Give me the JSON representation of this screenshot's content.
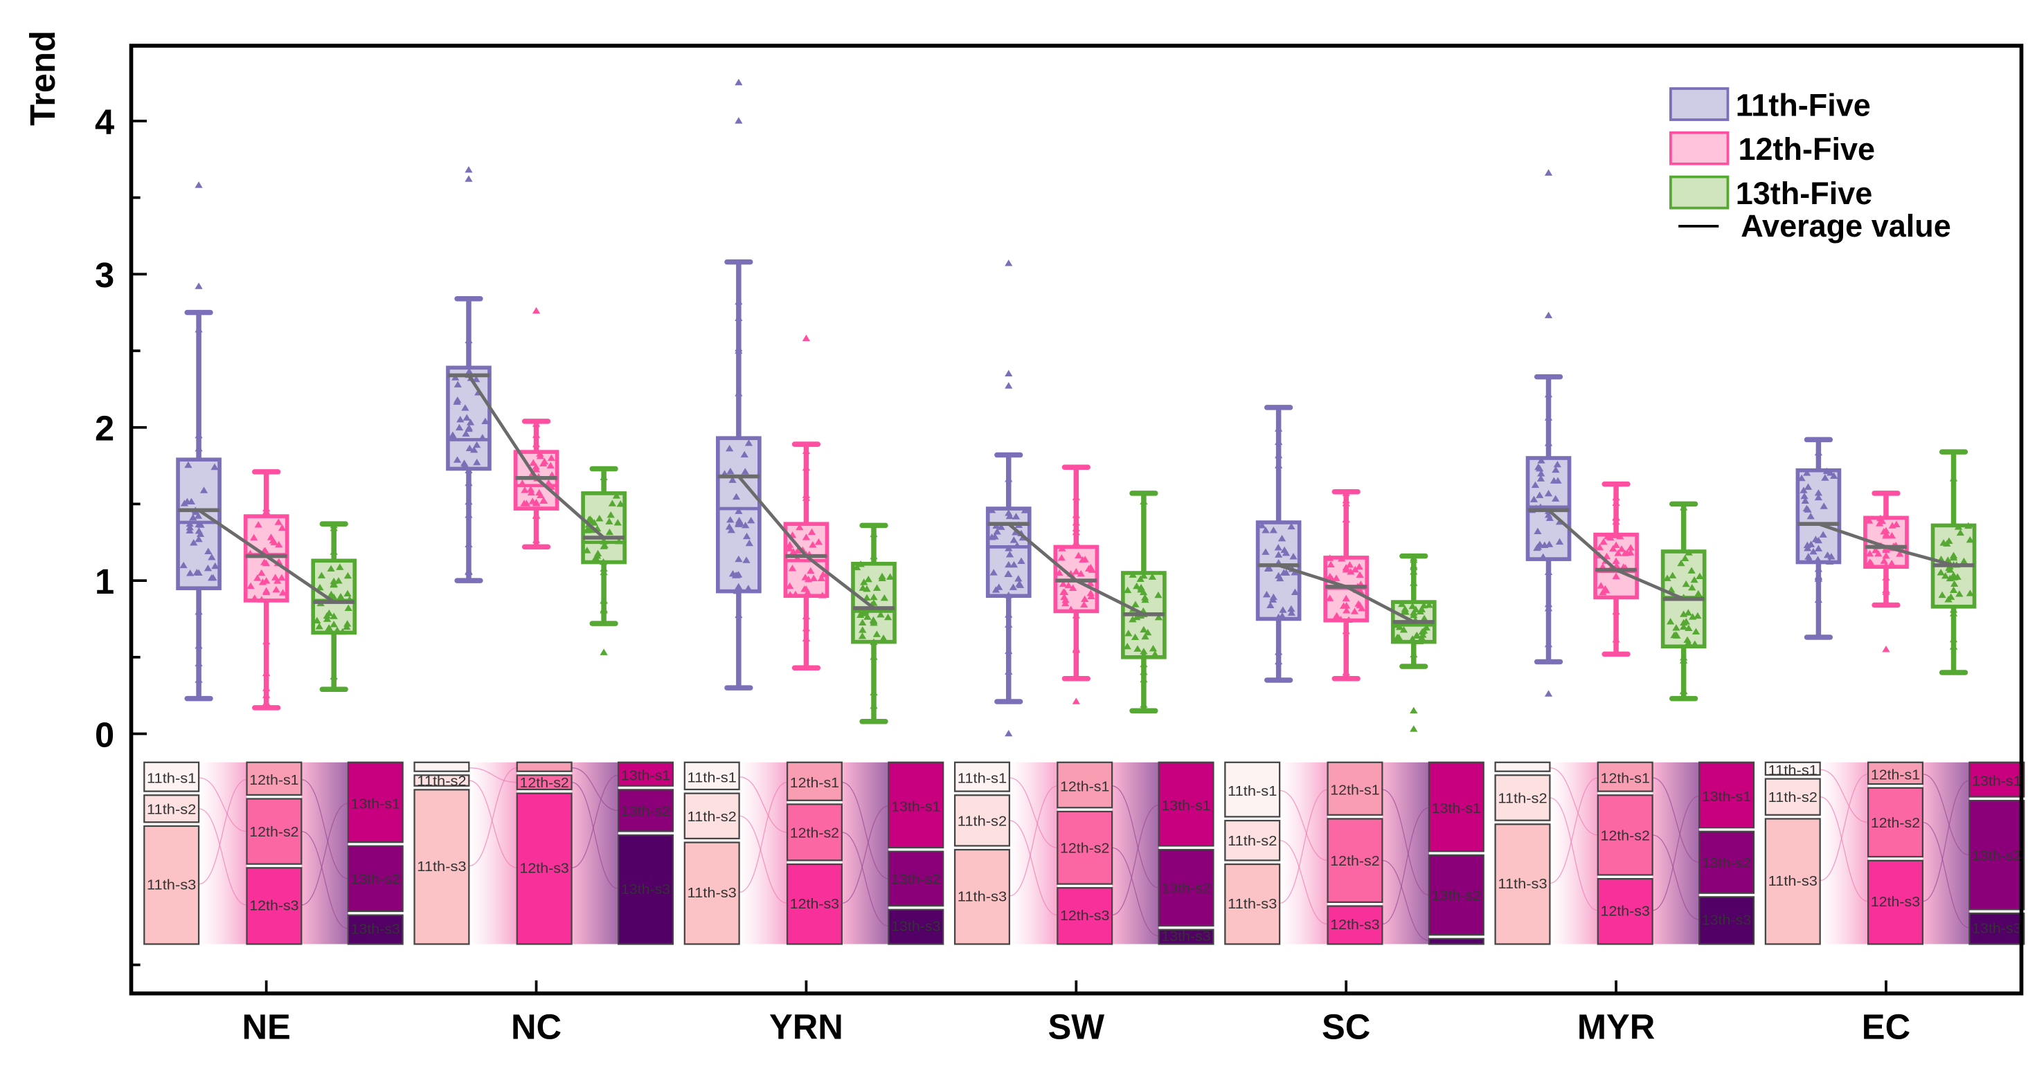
{
  "chart_data": {
    "type": "box",
    "ylabel": "Trend",
    "xlabel": "",
    "ylim": [
      -1.7,
      4.5
    ],
    "yticks": [
      "0",
      "1",
      "2",
      "3",
      "4"
    ],
    "categories": [
      "NE",
      "NC",
      "YRN",
      "SW",
      "SC",
      "MYR",
      "EC"
    ],
    "legend": {
      "placement": "top-right",
      "entries": [
        "11th-Five",
        "12th-Five",
        "13th-Five"
      ],
      "line_entry": "Average value"
    },
    "colors": {
      "11th-Five": {
        "stroke": "#7b6fb8",
        "fill": "#cfcde6"
      },
      "12th-Five": {
        "stroke": "#ff4fa0",
        "fill": "#ffc4dc"
      },
      "13th-Five": {
        "stroke": "#55a832",
        "fill": "#d0e4bd"
      },
      "mean_line": "#6b6b6b"
    },
    "series": [
      {
        "name": "11th-Five",
        "boxes": [
          {
            "low": 0.23,
            "q1": 0.95,
            "median": 1.38,
            "q3": 1.79,
            "high": 2.75,
            "mean": 1.46,
            "outliers": [
              2.92,
              3.58
            ]
          },
          {
            "low": 1.0,
            "q1": 1.73,
            "median": 1.92,
            "q3": 2.39,
            "high": 2.84,
            "mean": 2.34,
            "outliers": [
              3.62,
              3.68
            ]
          },
          {
            "low": 0.3,
            "q1": 0.93,
            "median": 1.47,
            "q3": 1.93,
            "high": 3.08,
            "mean": 1.68,
            "outliers": [
              4.0,
              4.25
            ]
          },
          {
            "low": 0.21,
            "q1": 0.9,
            "median": 1.22,
            "q3": 1.47,
            "high": 1.82,
            "mean": 1.37,
            "outliers": [
              2.27,
              2.35,
              3.07,
              0.0
            ]
          },
          {
            "low": 0.35,
            "q1": 0.75,
            "median": 1.1,
            "q3": 1.38,
            "high": 2.13,
            "mean": 1.1,
            "outliers": []
          },
          {
            "low": 0.47,
            "q1": 1.14,
            "median": 1.48,
            "q3": 1.8,
            "high": 2.33,
            "mean": 1.46,
            "outliers": [
              2.73,
              3.66,
              0.26
            ]
          },
          {
            "low": 0.63,
            "q1": 1.12,
            "median": 1.37,
            "q3": 1.72,
            "high": 1.92,
            "mean": 1.37,
            "outliers": []
          }
        ]
      },
      {
        "name": "12th-Five",
        "boxes": [
          {
            "low": 0.17,
            "q1": 0.87,
            "median": 1.17,
            "q3": 1.42,
            "high": 1.71,
            "mean": 1.16,
            "outliers": []
          },
          {
            "low": 1.22,
            "q1": 1.47,
            "median": 1.62,
            "q3": 1.84,
            "high": 2.04,
            "mean": 1.67,
            "outliers": [
              2.76
            ]
          },
          {
            "low": 0.43,
            "q1": 0.9,
            "median": 1.13,
            "q3": 1.37,
            "high": 1.89,
            "mean": 1.16,
            "outliers": [
              2.58
            ]
          },
          {
            "low": 0.36,
            "q1": 0.8,
            "median": 1.0,
            "q3": 1.22,
            "high": 1.74,
            "mean": 1.0,
            "outliers": [
              0.21
            ]
          },
          {
            "low": 0.36,
            "q1": 0.74,
            "median": 0.95,
            "q3": 1.15,
            "high": 1.58,
            "mean": 0.96,
            "outliers": []
          },
          {
            "low": 0.52,
            "q1": 0.89,
            "median": 1.06,
            "q3": 1.3,
            "high": 1.63,
            "mean": 1.07,
            "outliers": []
          },
          {
            "low": 0.84,
            "q1": 1.09,
            "median": 1.22,
            "q3": 1.41,
            "high": 1.57,
            "mean": 1.22,
            "outliers": [
              0.55
            ]
          }
        ]
      },
      {
        "name": "13th-Five",
        "boxes": [
          {
            "low": 0.29,
            "q1": 0.66,
            "median": 0.87,
            "q3": 1.13,
            "high": 1.37,
            "mean": 0.86,
            "outliers": []
          },
          {
            "low": 0.72,
            "q1": 1.12,
            "median": 1.25,
            "q3": 1.57,
            "high": 1.73,
            "mean": 1.28,
            "outliers": [
              0.53
            ]
          },
          {
            "low": 0.08,
            "q1": 0.6,
            "median": 0.8,
            "q3": 1.11,
            "high": 1.36,
            "mean": 0.82,
            "outliers": []
          },
          {
            "low": 0.15,
            "q1": 0.5,
            "median": 0.78,
            "q3": 1.05,
            "high": 1.57,
            "mean": 0.78,
            "outliers": []
          },
          {
            "low": 0.44,
            "q1": 0.6,
            "median": 0.71,
            "q3": 0.86,
            "high": 1.16,
            "mean": 0.73,
            "outliers": [
              0.03,
              0.15
            ]
          },
          {
            "low": 0.23,
            "q1": 0.57,
            "median": 0.89,
            "q3": 1.19,
            "high": 1.5,
            "mean": 0.88,
            "outliers": []
          },
          {
            "low": 0.4,
            "q1": 0.83,
            "median": 1.1,
            "q3": 1.36,
            "high": 1.84,
            "mean": 1.1,
            "outliers": []
          }
        ]
      }
    ],
    "alluvial": {
      "periods": [
        "11th",
        "12th",
        "13th"
      ],
      "stage_labels": [
        [
          "11th-s1",
          "11th-s2",
          "11th-s3"
        ],
        [
          "12th-s1",
          "12th-s2",
          "12th-s3"
        ],
        [
          "13th-s1",
          "13th-s2",
          "13th-s3"
        ]
      ],
      "stage_colors": [
        [
          "#fdf3f3",
          "#fde0e0",
          "#fbc3c5"
        ],
        [
          "#f99db2",
          "#fb67a2",
          "#f7309a"
        ],
        [
          "#c8007f",
          "#8b0079",
          "#520066"
        ]
      ],
      "shares": [
        [
          [
            0.17,
            0.17,
            0.66
          ],
          [
            0.19,
            0.38,
            0.43
          ],
          [
            0.45,
            0.38,
            0.17
          ]
        ],
        [
          [
            0.06,
            0.08,
            0.86
          ],
          [
            0.06,
            0.1,
            0.84
          ],
          [
            0.14,
            0.25,
            0.61
          ]
        ],
        [
          [
            0.16,
            0.27,
            0.57
          ],
          [
            0.22,
            0.33,
            0.45
          ],
          [
            0.48,
            0.32,
            0.2
          ]
        ],
        [
          [
            0.17,
            0.3,
            0.53
          ],
          [
            0.26,
            0.42,
            0.32
          ],
          [
            0.47,
            0.44,
            0.09
          ]
        ],
        [
          [
            0.31,
            0.24,
            0.45
          ],
          [
            0.3,
            0.48,
            0.22
          ],
          [
            0.5,
            0.46,
            0.04
          ]
        ],
        [
          [
            0.06,
            0.27,
            0.67
          ],
          [
            0.17,
            0.46,
            0.37
          ],
          [
            0.37,
            0.36,
            0.27
          ]
        ],
        [
          [
            0.08,
            0.22,
            0.7
          ],
          [
            0.13,
            0.4,
            0.47
          ],
          [
            0.2,
            0.62,
            0.18
          ]
        ]
      ]
    }
  }
}
